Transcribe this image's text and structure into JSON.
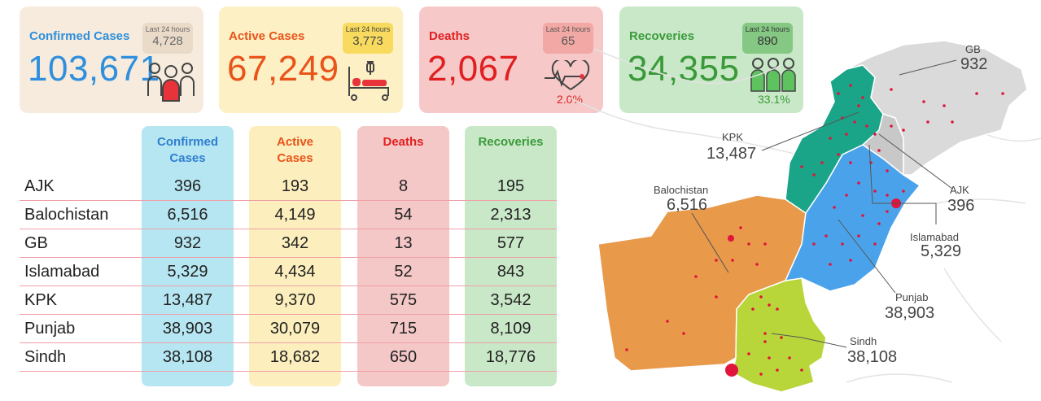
{
  "cards": {
    "confirmed": {
      "title": "Confirmed Cases",
      "value": "103,671",
      "last24_label": "Last 24 hours",
      "last24_value": "4,728",
      "icon": "group-icon"
    },
    "active": {
      "title": "Active Cases",
      "value": "67,249",
      "last24_label": "Last 24 hours",
      "last24_value": "3,773",
      "icon": "hospital-bed-icon"
    },
    "deaths": {
      "title": "Deaths",
      "value": "2,067",
      "last24_label": "Last 24 hours",
      "last24_value": "65",
      "pct": "2.0%",
      "icon": "heartbeat-icon"
    },
    "recoveries": {
      "title": "Recoveries",
      "value": "34,355",
      "last24_label": "Last 24 hours",
      "last24_value": "890",
      "pct": "33.1%",
      "icon": "recovered-group-icon"
    }
  },
  "table": {
    "headers": {
      "confirmed": [
        "Confirmed",
        "Cases"
      ],
      "active": [
        "Active",
        "Cases"
      ],
      "deaths": "Deaths",
      "recoveries": "Recoveries"
    },
    "rows": [
      {
        "region": "AJK",
        "confirmed": "396",
        "active": "193",
        "deaths": "8",
        "recoveries": "195"
      },
      {
        "region": "Balochistan",
        "confirmed": "6,516",
        "active": "4,149",
        "deaths": "54",
        "recoveries": "2,313"
      },
      {
        "region": "GB",
        "confirmed": "932",
        "active": "342",
        "deaths": "13",
        "recoveries": "577"
      },
      {
        "region": "Islamabad",
        "confirmed": "5,329",
        "active": "4,434",
        "deaths": "52",
        "recoveries": "843"
      },
      {
        "region": "KPK",
        "confirmed": "13,487",
        "active": "9,370",
        "deaths": "575",
        "recoveries": "3,542"
      },
      {
        "region": "Punjab",
        "confirmed": "38,903",
        "active": "30,079",
        "deaths": "715",
        "recoveries": "8,109"
      },
      {
        "region": "Sindh",
        "confirmed": "38,108",
        "active": "18,682",
        "deaths": "650",
        "recoveries": "18,776"
      }
    ]
  },
  "map": {
    "labels": {
      "gb": {
        "name": "GB",
        "value": "932"
      },
      "kpk": {
        "name": "KPK",
        "value": "13,487"
      },
      "ajk": {
        "name": "AJK",
        "value": "396"
      },
      "balochistan": {
        "name": "Balochistan",
        "value": "6,516"
      },
      "islamabad": {
        "name": "Islamabad",
        "value": "5,329"
      },
      "punjab": {
        "name": "Punjab",
        "value": "38,903"
      },
      "sindh": {
        "name": "Sindh",
        "value": "38,108"
      }
    },
    "colors": {
      "gb": "#dadada",
      "kpk": "#1aa588",
      "punjab": "#4aa3ea",
      "balochistan": "#e8994a",
      "sindh": "#b8d63a",
      "ajk": "#c8c8c8",
      "dot": "#e0143c"
    }
  },
  "colors": {
    "confirmed": "#2f8fdc",
    "active": "#e8541a",
    "deaths": "#e02020",
    "recoveries": "#3a9a3a"
  }
}
